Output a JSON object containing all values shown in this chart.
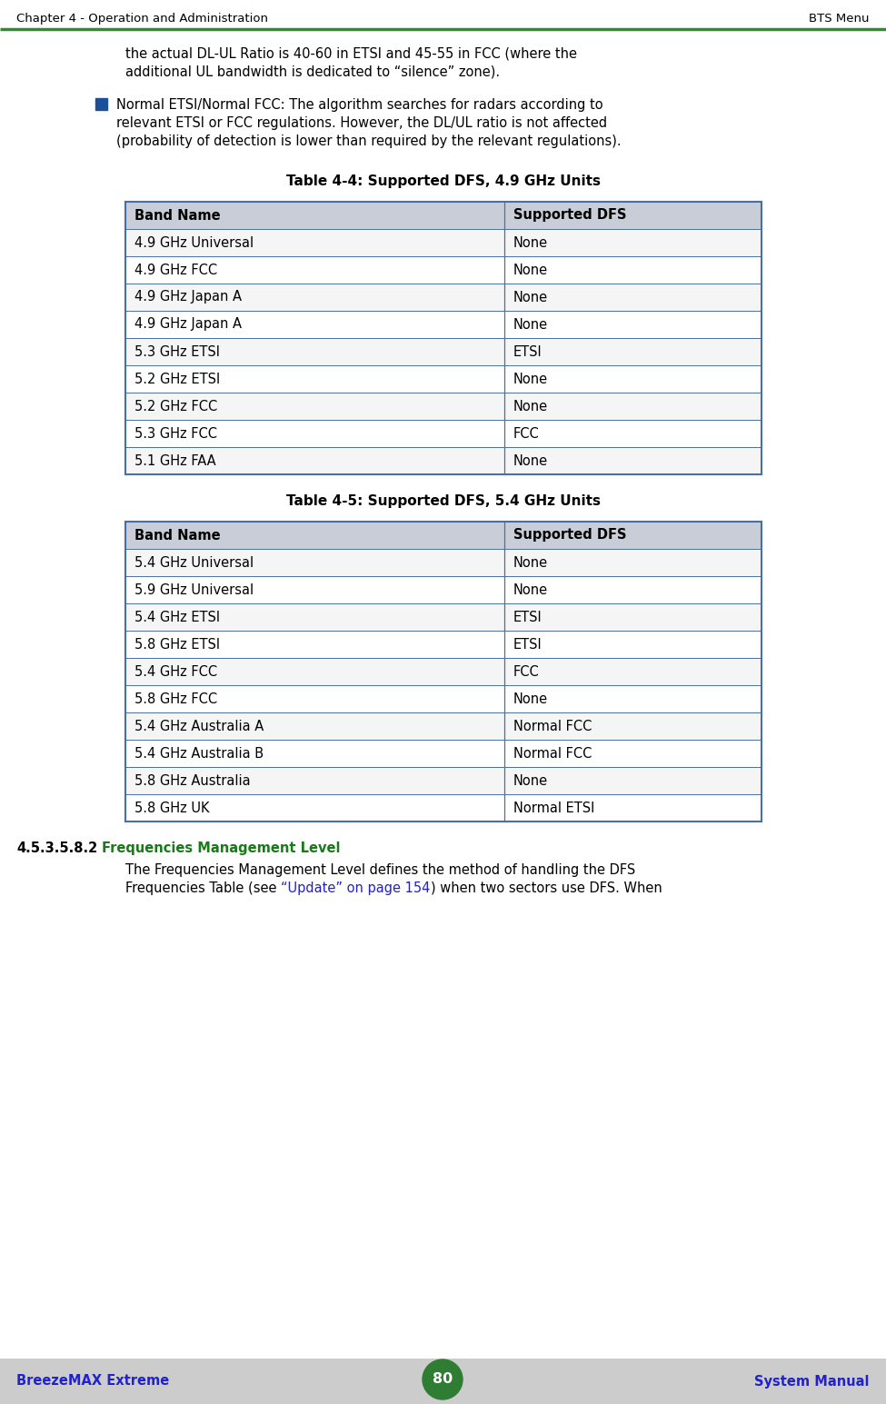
{
  "header_left": "Chapter 4 - Operation and Administration",
  "header_right": "BTS Menu",
  "header_line_color": "#2e8b2e",
  "footer_left": "BreezeMAX Extreme",
  "footer_center": "80",
  "footer_right": "System Manual",
  "footer_bg": "#cccccc",
  "footer_text_color": "#2222cc",
  "footer_circle_color": "#2e7d32",
  "body_text1": "the actual DL-UL Ratio is 40-60 in ETSI and 45-55 in FCC (where the",
  "body_text2": "additional UL bandwidth is dedicated to “silence” zone).",
  "bullet_color": "#1a4f9c",
  "bullet_text_line1": "Normal ETSI/Normal FCC: The algorithm searches for radars according to",
  "bullet_text_line2": "relevant ETSI or FCC regulations. However, the DL/UL ratio is not affected",
  "bullet_text_line3": "(probability of detection is lower than required by the relevant regulations).",
  "table1_title": "Table 4-4: Supported DFS, 4.9 GHz Units",
  "table1_header": [
    "Band Name",
    "Supported DFS"
  ],
  "table1_rows": [
    [
      "4.9 GHz Universal",
      "None"
    ],
    [
      "4.9 GHz FCC",
      "None"
    ],
    [
      "4.9 GHz Japan A",
      "None"
    ],
    [
      "4.9 GHz Japan A",
      "None"
    ],
    [
      "5.3 GHz ETSI",
      "ETSI"
    ],
    [
      "5.2 GHz ETSI",
      "None"
    ],
    [
      "5.2 GHz FCC",
      "None"
    ],
    [
      "5.3 GHz FCC",
      "FCC"
    ],
    [
      "5.1 GHz FAA",
      "None"
    ]
  ],
  "table2_title": "Table 4-5: Supported DFS, 5.4 GHz Units",
  "table2_header": [
    "Band Name",
    "Supported DFS"
  ],
  "table2_rows": [
    [
      "5.4 GHz Universal",
      "None"
    ],
    [
      "5.9 GHz Universal",
      "None"
    ],
    [
      "5.4 GHz ETSI",
      "ETSI"
    ],
    [
      "5.8 GHz ETSI",
      "ETSI"
    ],
    [
      "5.4 GHz FCC",
      "FCC"
    ],
    [
      "5.8 GHz FCC",
      "None"
    ],
    [
      "5.4 GHz Australia A",
      "Normal FCC"
    ],
    [
      "5.4 GHz Australia B",
      "Normal FCC"
    ],
    [
      "5.8 GHz Australia",
      "None"
    ],
    [
      "5.8 GHz UK",
      "Normal ETSI"
    ]
  ],
  "table_header_bg": "#c8cdd8",
  "table_border_color": "#4a6fa5",
  "section_number": "4.5.3.5.8.2",
  "section_title": "Frequencies Management Level",
  "section_title_color": "#1a7a1a",
  "section_body_line1": "The Frequencies Management Level defines the method of handling the DFS",
  "section_body_line2_pre": "Frequencies Table (see ",
  "section_body_link": "“Update” on page 154",
  "section_body_line2_post": ") when two sectors use DFS. When",
  "link_color": "#2222cc",
  "background_color": "#ffffff",
  "text_color": "#000000",
  "font_size_body": 10.5,
  "font_size_table": 10.5,
  "font_size_header_bar": 9.5,
  "font_size_title": 11.0,
  "font_size_section_num": 10.5
}
